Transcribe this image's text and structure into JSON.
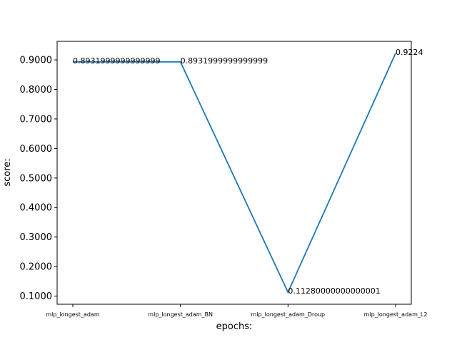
{
  "chart_data": {
    "type": "line",
    "title": "",
    "xlabel": "epochs:",
    "ylabel": "score:",
    "categories": [
      "mlp_longest_adam",
      "mlp_longest_adam_BN",
      "mlp_longest_adam_Droup",
      "mlp_longest_adam_L2"
    ],
    "values": [
      0.8931999999999999,
      0.8931999999999999,
      0.11280000000000001,
      0.9224
    ],
    "data_labels": [
      "0.8931999999999999",
      "0.8931999999999999",
      "0.11280000000000001",
      "0.9224"
    ],
    "yticks": [
      "0.1000",
      "0.2000",
      "0.3000",
      "0.4000",
      "0.5000",
      "0.6000",
      "0.7000",
      "0.8000",
      "0.9000"
    ],
    "ylim": [
      0.07234,
      0.96286
    ],
    "grid": false,
    "line_color": "#1f77b4"
  }
}
